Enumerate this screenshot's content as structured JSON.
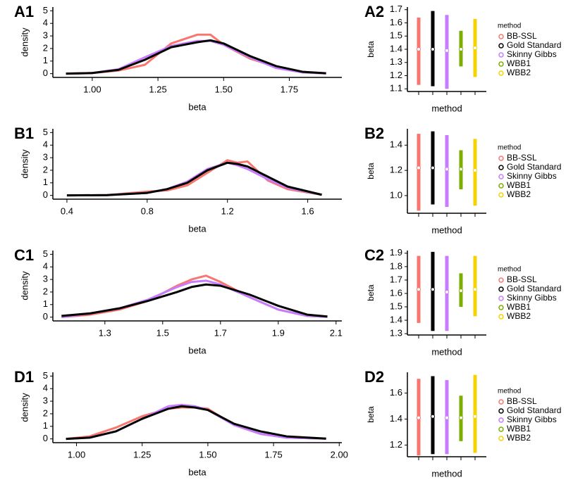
{
  "chart_data": [
    {
      "type": "line",
      "panel": "A1",
      "xlabel": "beta",
      "ylabel": "density",
      "x": [
        0.9,
        1.0,
        1.1,
        1.2,
        1.3,
        1.4,
        1.45,
        1.5,
        1.6,
        1.7,
        1.8,
        1.89
      ],
      "series": [
        {
          "color": "#f8766d",
          "values": [
            0,
            0.05,
            0.25,
            0.7,
            2.4,
            3.1,
            3.1,
            2.3,
            1.2,
            0.55,
            0.1,
            0.02
          ]
        },
        {
          "color": "#c77cff",
          "values": [
            0,
            0.05,
            0.35,
            1.3,
            2.2,
            2.6,
            2.6,
            2.3,
            1.3,
            0.45,
            0.1,
            0.02
          ]
        },
        {
          "color": "#000000",
          "values": [
            0,
            0.05,
            0.3,
            1.1,
            2.1,
            2.5,
            2.65,
            2.4,
            1.4,
            0.6,
            0.15,
            0.03
          ]
        }
      ],
      "xlim": [
        0.85,
        1.95
      ],
      "xticks": [
        {
          "value": 1,
          "label": "1.00"
        },
        1.25,
        {
          "value": 1.5,
          "label": "1.50"
        },
        1.75
      ],
      "ylim": [
        -0.3,
        5.3
      ],
      "yticks": [
        0,
        1,
        2,
        3,
        4,
        5
      ]
    },
    {
      "type": "interval",
      "panel": "A2",
      "xlabel": "method",
      "ylabel": "beta",
      "legend_title": "method",
      "series": [
        {
          "name": "BB-SSL",
          "color": "#f8766d",
          "values": [
            1.4
          ],
          "lower": [
            1.13
          ],
          "upper": [
            1.64
          ]
        },
        {
          "name": "Gold Standard",
          "color": "#000000",
          "values": [
            1.4
          ],
          "lower": [
            1.12
          ],
          "upper": [
            1.69
          ]
        },
        {
          "name": "Skinny Gibbs",
          "color": "#c77cff",
          "values": [
            1.39
          ],
          "lower": [
            1.1
          ],
          "upper": [
            1.66
          ]
        },
        {
          "name": "WBB1",
          "color": "#7cae00",
          "values": [
            1.4
          ],
          "lower": [
            1.27
          ],
          "upper": [
            1.54
          ]
        },
        {
          "name": "WBB2",
          "color": "#f5d300",
          "values": [
            1.41
          ],
          "lower": [
            1.19
          ],
          "upper": [
            1.63
          ]
        }
      ],
      "ylim": [
        1.08,
        1.72
      ],
      "yticks": [
        1.1,
        1.2,
        1.3,
        1.4,
        1.5,
        1.6,
        1.7
      ]
    },
    {
      "type": "line",
      "panel": "B1",
      "xlabel": "beta",
      "ylabel": "density",
      "x": [
        0.4,
        0.6,
        0.8,
        0.9,
        1.0,
        1.1,
        1.2,
        1.25,
        1.3,
        1.4,
        1.5,
        1.67
      ],
      "series": [
        {
          "color": "#f8766d",
          "values": [
            0,
            0.02,
            0.3,
            0.4,
            0.8,
            1.8,
            2.8,
            2.6,
            2.7,
            1.2,
            0.5,
            0.05
          ]
        },
        {
          "color": "#c77cff",
          "values": [
            0,
            0.02,
            0.2,
            0.5,
            1.1,
            2.1,
            2.6,
            2.4,
            2.1,
            1.3,
            0.6,
            0.05
          ]
        },
        {
          "color": "#000000",
          "values": [
            0,
            0.02,
            0.2,
            0.5,
            1.0,
            2.0,
            2.6,
            2.5,
            2.3,
            1.5,
            0.7,
            0.05
          ]
        }
      ],
      "xlim": [
        0.33,
        1.77
      ],
      "xticks": [
        0.4,
        0.8,
        1.2,
        1.6
      ],
      "ylim": [
        -0.3,
        5.3
      ],
      "yticks": [
        0,
        1,
        2,
        3,
        4,
        5
      ]
    },
    {
      "type": "interval",
      "panel": "B2",
      "xlabel": "method",
      "ylabel": "beta",
      "legend_title": "method",
      "series": [
        {
          "name": "BB-SSL",
          "color": "#f8766d",
          "values": [
            1.22
          ],
          "lower": [
            0.88
          ],
          "upper": [
            1.49
          ]
        },
        {
          "name": "Gold Standard",
          "color": "#000000",
          "values": [
            1.22
          ],
          "lower": [
            0.93
          ],
          "upper": [
            1.51
          ]
        },
        {
          "name": "Skinny Gibbs",
          "color": "#c77cff",
          "values": [
            1.21
          ],
          "lower": [
            0.91
          ],
          "upper": [
            1.48
          ]
        },
        {
          "name": "WBB1",
          "color": "#7cae00",
          "values": [
            1.21
          ],
          "lower": [
            1.05
          ],
          "upper": [
            1.36
          ]
        },
        {
          "name": "WBB2",
          "color": "#f5d300",
          "values": [
            1.2
          ],
          "lower": [
            0.92
          ],
          "upper": [
            1.45
          ]
        }
      ],
      "ylim": [
        0.86,
        1.53
      ],
      "yticks": [
        {
          "value": 1,
          "label": "1.0"
        },
        1.2,
        1.4
      ]
    },
    {
      "type": "line",
      "panel": "C1",
      "xlabel": "beta",
      "ylabel": "density",
      "x": [
        1.15,
        1.25,
        1.35,
        1.45,
        1.55,
        1.6,
        1.65,
        1.7,
        1.8,
        1.9,
        2.0,
        2.07
      ],
      "series": [
        {
          "color": "#f8766d",
          "values": [
            0,
            0.2,
            0.6,
            1.3,
            2.5,
            3.0,
            3.3,
            2.8,
            1.6,
            0.6,
            0.1,
            0.02
          ]
        },
        {
          "color": "#c77cff",
          "values": [
            0,
            0.3,
            0.7,
            1.4,
            2.4,
            2.8,
            2.9,
            2.6,
            1.6,
            0.6,
            0.1,
            0.02
          ]
        },
        {
          "color": "#000000",
          "values": [
            0.1,
            0.3,
            0.7,
            1.3,
            2.0,
            2.4,
            2.6,
            2.5,
            1.8,
            0.9,
            0.2,
            0.05
          ]
        }
      ],
      "xlim": [
        1.12,
        2.12
      ],
      "xticks": [
        1.3,
        1.5,
        1.7,
        1.9,
        2.1
      ],
      "ylim": [
        -0.3,
        5.3
      ],
      "yticks": [
        0,
        1,
        2,
        3,
        4,
        5
      ]
    },
    {
      "type": "interval",
      "panel": "C2",
      "xlabel": "method",
      "ylabel": "beta",
      "legend_title": "method",
      "series": [
        {
          "name": "BB-SSL",
          "color": "#f8766d",
          "values": [
            1.63
          ],
          "lower": [
            1.38
          ],
          "upper": [
            1.88
          ]
        },
        {
          "name": "Gold Standard",
          "color": "#000000",
          "values": [
            1.63
          ],
          "lower": [
            1.32
          ],
          "upper": [
            1.91
          ]
        },
        {
          "name": "Skinny Gibbs",
          "color": "#c77cff",
          "values": [
            1.61
          ],
          "lower": [
            1.32
          ],
          "upper": [
            1.88
          ]
        },
        {
          "name": "WBB1",
          "color": "#7cae00",
          "values": [
            1.62
          ],
          "lower": [
            1.5
          ],
          "upper": [
            1.75
          ]
        },
        {
          "name": "WBB2",
          "color": "#f5d300",
          "values": [
            1.63
          ],
          "lower": [
            1.43
          ],
          "upper": [
            1.88
          ]
        }
      ],
      "ylim": [
        1.29,
        1.92
      ],
      "yticks": [
        1.3,
        1.4,
        1.5,
        1.6,
        1.7,
        1.8,
        1.9
      ]
    },
    {
      "type": "line",
      "panel": "D1",
      "xlabel": "beta",
      "ylabel": "density",
      "x": [
        0.96,
        1.05,
        1.15,
        1.25,
        1.35,
        1.4,
        1.45,
        1.5,
        1.6,
        1.7,
        1.8,
        1.95
      ],
      "series": [
        {
          "color": "#f8766d",
          "values": [
            0,
            0.2,
            0.9,
            1.8,
            2.4,
            2.5,
            2.5,
            2.4,
            1.1,
            0.4,
            0.1,
            0.02
          ]
        },
        {
          "color": "#c77cff",
          "values": [
            0,
            0.1,
            0.6,
            1.6,
            2.6,
            2.7,
            2.6,
            2.3,
            1.1,
            0.4,
            0.1,
            0.02
          ]
        },
        {
          "color": "#000000",
          "values": [
            0,
            0.1,
            0.6,
            1.6,
            2.4,
            2.6,
            2.5,
            2.3,
            1.2,
            0.6,
            0.2,
            0.02
          ]
        }
      ],
      "xlim": [
        0.91,
        2.01
      ],
      "xticks": [
        {
          "value": 1,
          "label": "1.00"
        },
        1.25,
        {
          "value": 1.5,
          "label": "1.50"
        },
        1.75,
        {
          "value": 2,
          "label": "2.00"
        }
      ],
      "ylim": [
        -0.3,
        5.3
      ],
      "yticks": [
        0,
        1,
        2,
        3,
        4,
        5
      ]
    },
    {
      "type": "interval",
      "panel": "D2",
      "xlabel": "method",
      "ylabel": "beta",
      "legend_title": "method",
      "series": [
        {
          "name": "BB-SSL",
          "color": "#f8766d",
          "values": [
            1.41
          ],
          "lower": [
            1.12
          ],
          "upper": [
            1.71
          ]
        },
        {
          "name": "Gold Standard",
          "color": "#000000",
          "values": [
            1.42
          ],
          "lower": [
            1.13
          ],
          "upper": [
            1.73
          ]
        },
        {
          "name": "Skinny Gibbs",
          "color": "#c77cff",
          "values": [
            1.41
          ],
          "lower": [
            1.13
          ],
          "upper": [
            1.7
          ]
        },
        {
          "name": "WBB1",
          "color": "#7cae00",
          "values": [
            1.41
          ],
          "lower": [
            1.23
          ],
          "upper": [
            1.58
          ]
        },
        {
          "name": "WBB2",
          "color": "#f5d300",
          "values": [
            1.42
          ],
          "lower": [
            1.14
          ],
          "upper": [
            1.74
          ]
        }
      ],
      "ylim": [
        1.11,
        1.76
      ],
      "yticks": [
        1.2,
        1.4,
        1.6
      ]
    }
  ]
}
